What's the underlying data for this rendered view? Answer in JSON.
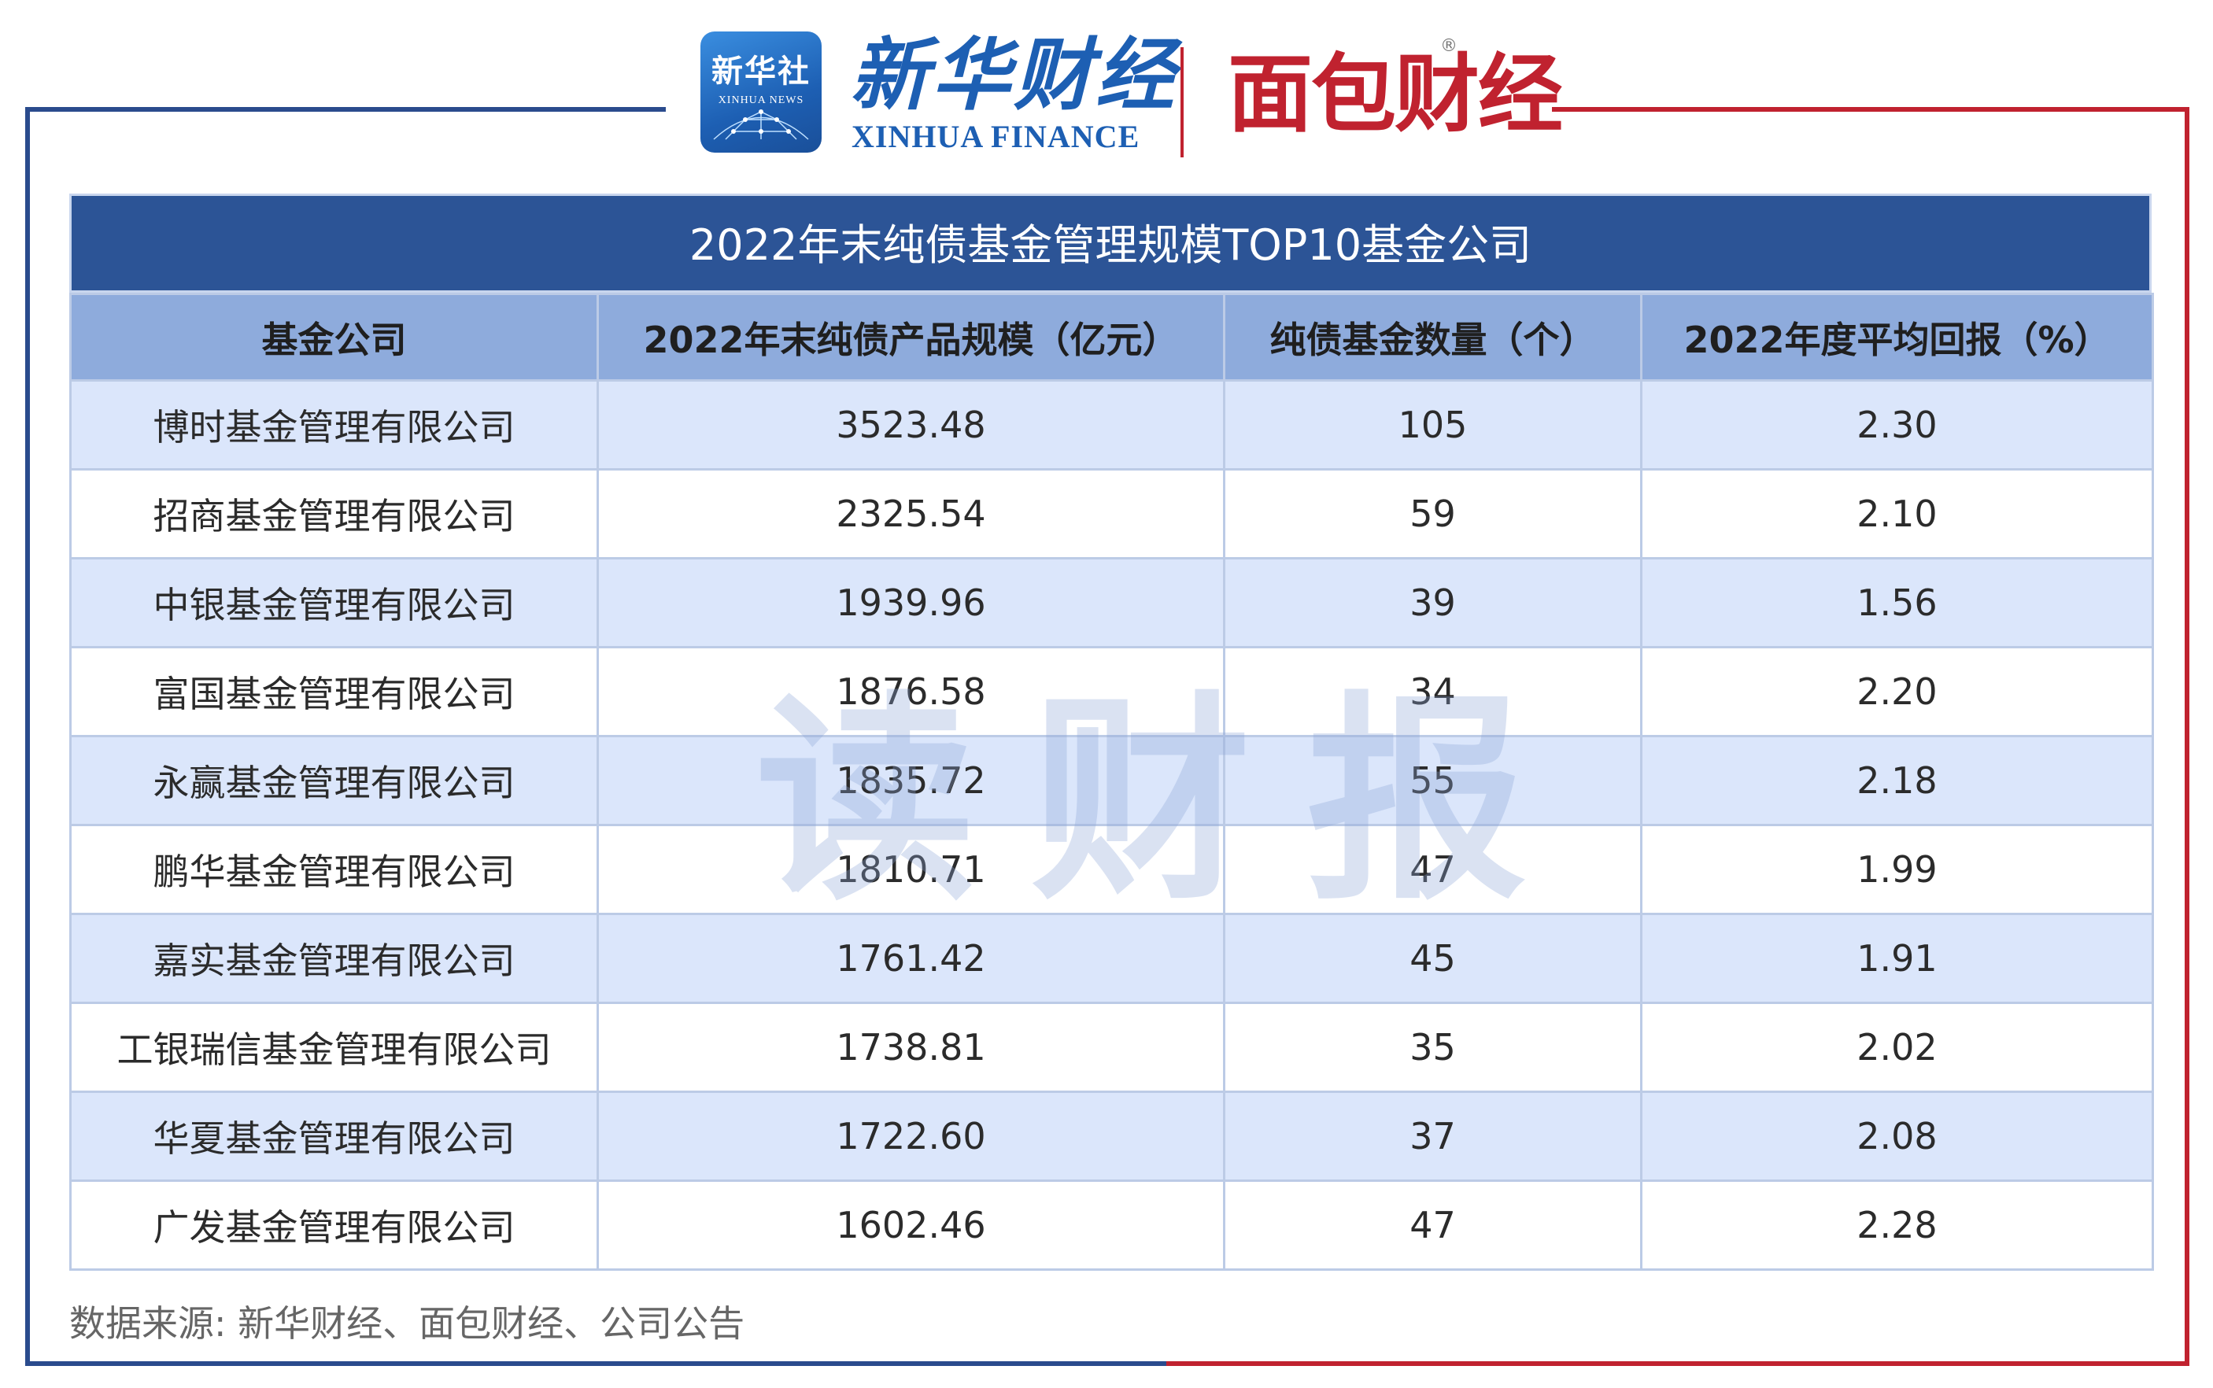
{
  "header": {
    "xinhua_square_cn": "新华社",
    "xinhua_square_en": "XINHUA NEWS",
    "xinhua_finance_cn": "新华财经",
    "xinhua_finance_en": "XINHUA FINANCE",
    "mianbao_logo": "面包财经",
    "registered_mark": "®"
  },
  "table": {
    "title": "2022年末纯债基金管理规模TOP10基金公司",
    "columns": [
      "基金公司",
      "2022年末纯债产品规模（亿元）",
      "纯债基金数量（个）",
      "2022年度平均回报（%）"
    ],
    "rows": [
      [
        "博时基金管理有限公司",
        "3523.48",
        "105",
        "2.30"
      ],
      [
        "招商基金管理有限公司",
        "2325.54",
        "59",
        "2.10"
      ],
      [
        "中银基金管理有限公司",
        "1939.96",
        "39",
        "1.56"
      ],
      [
        "富国基金管理有限公司",
        "1876.58",
        "34",
        "2.20"
      ],
      [
        "永赢基金管理有限公司",
        "1835.72",
        "55",
        "2.18"
      ],
      [
        "鹏华基金管理有限公司",
        "1810.71",
        "47",
        "1.99"
      ],
      [
        "嘉实基金管理有限公司",
        "1761.42",
        "45",
        "1.91"
      ],
      [
        "工银瑞信基金管理有限公司",
        "1738.81",
        "35",
        "2.02"
      ],
      [
        "华夏基金管理有限公司",
        "1722.60",
        "37",
        "2.08"
      ],
      [
        "广发基金管理有限公司",
        "1602.46",
        "47",
        "2.28"
      ]
    ]
  },
  "watermark": "读财报",
  "source_note": "数据来源: 新华财经、面包财经、公司公告",
  "colors": {
    "title_bar": "#2c5496",
    "header_row": "#8eabdc",
    "odd_row": "#dbe6fb",
    "frame_blue": "#2a4b8d",
    "frame_red": "#c0222f"
  }
}
